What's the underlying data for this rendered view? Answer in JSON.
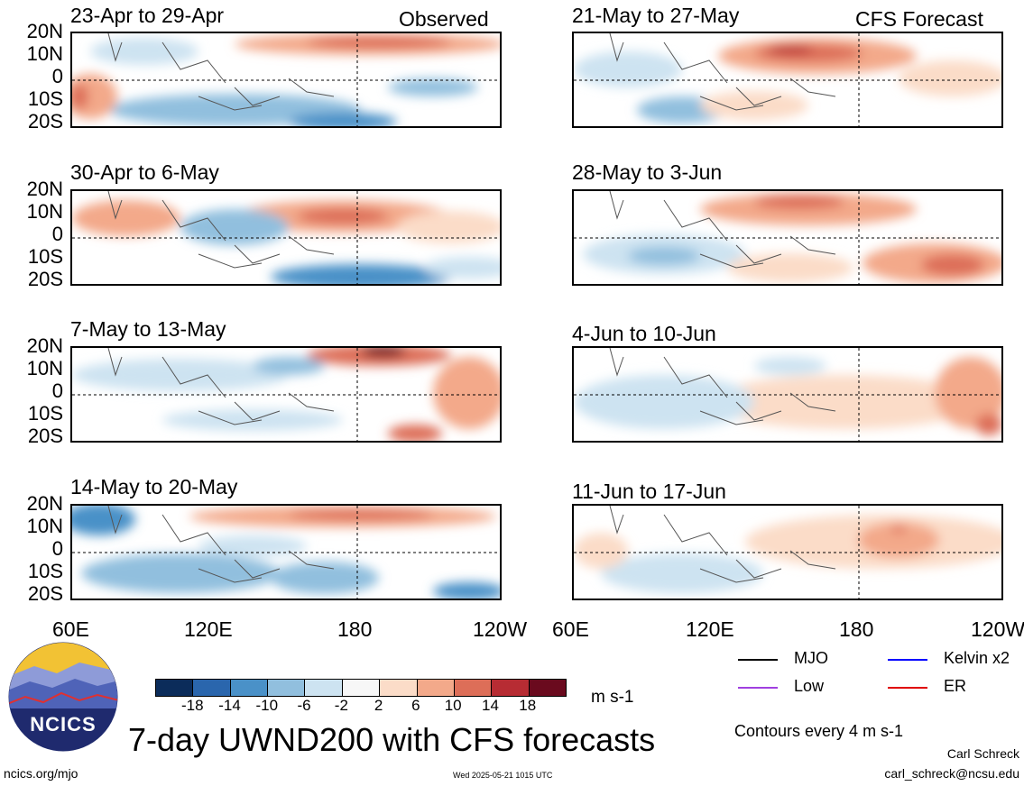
{
  "left_header": "Observed",
  "right_header": "CFS Forecast",
  "panels_left": [
    {
      "label": "23-Apr to 29-Apr"
    },
    {
      "label": "30-Apr to 6-May"
    },
    {
      "label": "7-May to 13-May"
    },
    {
      "label": "14-May to 20-May"
    }
  ],
  "panels_right": [
    {
      "label": "21-May to 27-May"
    },
    {
      "label": "28-May to 3-Jun"
    },
    {
      "label": "4-Jun to 10-Jun"
    },
    {
      "label": "11-Jun to 17-Jun"
    }
  ],
  "lat_labels": [
    "20N",
    "10N",
    "0",
    "10S",
    "20S"
  ],
  "lon_labels": [
    "60E",
    "120E",
    "180",
    "120W"
  ],
  "colorbar": {
    "colors": [
      "#0b2c5a",
      "#2a66ad",
      "#4a91c8",
      "#91bfde",
      "#cde3f1",
      "#f7f7f7",
      "#fbdcc8",
      "#f3a98a",
      "#dd6e58",
      "#b72c33",
      "#6a0a1e"
    ],
    "tick_labels": [
      "-18",
      "-14",
      "-10",
      "-6",
      "-2",
      "2",
      "6",
      "10",
      "14",
      "18"
    ],
    "units": "m s-1"
  },
  "legend": {
    "items": [
      {
        "label": "MJO",
        "color": "#000000"
      },
      {
        "label": "Kelvin x2",
        "color": "#0000ff"
      },
      {
        "label": "Low",
        "color": "#a040e0"
      },
      {
        "label": "ER",
        "color": "#e00000"
      }
    ],
    "contours_note": "Contours every 4 m s-1"
  },
  "main_title": "7-day UWND200 with CFS forecasts",
  "logo_text": "NCICS",
  "author": "Carl Schreck",
  "email": "carl_schreck@ncsu.edu",
  "site": "ncics.org/mjo",
  "timestamp": "Wed 2025-05-21 1015 UTC"
}
